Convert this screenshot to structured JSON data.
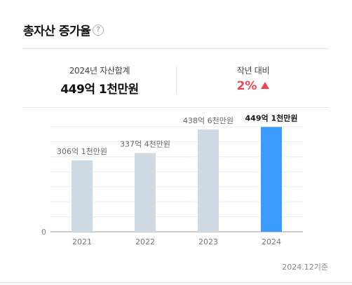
{
  "header": {
    "title": "총자산 증가율",
    "help_icon": "question-circle-icon"
  },
  "summary": {
    "total_label": "2024년 자산합계",
    "total_value": "449억 1천만원",
    "change_label": "작년 대비",
    "change_value": "2%",
    "change_icon": "triangle-up-icon",
    "change_color": "#f04452"
  },
  "chart_data": {
    "type": "bar",
    "categories": [
      "2021",
      "2022",
      "2023",
      "2024"
    ],
    "values": [
      306.1,
      337.4,
      438.6,
      449.1
    ],
    "data_labels": [
      "306억 1천만원",
      "337억 4천만원",
      "438억 6천만원",
      "449억 1천만원"
    ],
    "y_tick_labels": [
      "0"
    ],
    "ylim": [
      0,
      450
    ],
    "grid": true,
    "colors": {
      "bar": "#d0dae3",
      "highlight_bar": "#3b9bff"
    },
    "highlight_index": 3
  },
  "footnote": "2024.12기준"
}
